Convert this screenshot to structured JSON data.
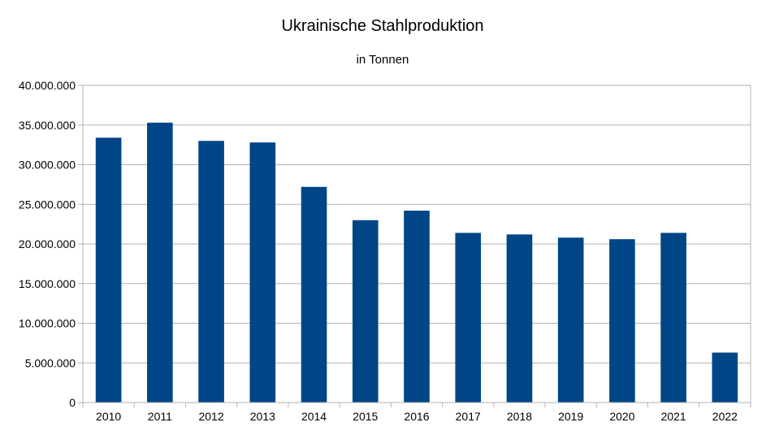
{
  "chart_data": {
    "type": "bar",
    "title": "Ukrainische Stahlproduktion",
    "subtitle": "in Tonnen",
    "xlabel": "",
    "ylabel": "",
    "categories": [
      "2010",
      "2011",
      "2012",
      "2013",
      "2014",
      "2015",
      "2016",
      "2017",
      "2018",
      "2019",
      "2020",
      "2021",
      "2022"
    ],
    "values": [
      33400000,
      35300000,
      33000000,
      32800000,
      27200000,
      23000000,
      24200000,
      21400000,
      21200000,
      20800000,
      20600000,
      21400000,
      6300000
    ],
    "ylim": [
      0,
      40000000
    ],
    "yticks": [
      0,
      5000000,
      10000000,
      15000000,
      20000000,
      25000000,
      30000000,
      35000000,
      40000000
    ],
    "ytick_labels": [
      "0",
      "5.000.000",
      "10.000.000",
      "15.000.000",
      "20.000.000",
      "25.000.000",
      "30.000.000",
      "35.000.000",
      "40.000.000"
    ],
    "grid": true,
    "legend": "none",
    "bar_color": "#004586",
    "grid_color": "#b3b3b3",
    "axis_color": "#b3b3b3"
  }
}
